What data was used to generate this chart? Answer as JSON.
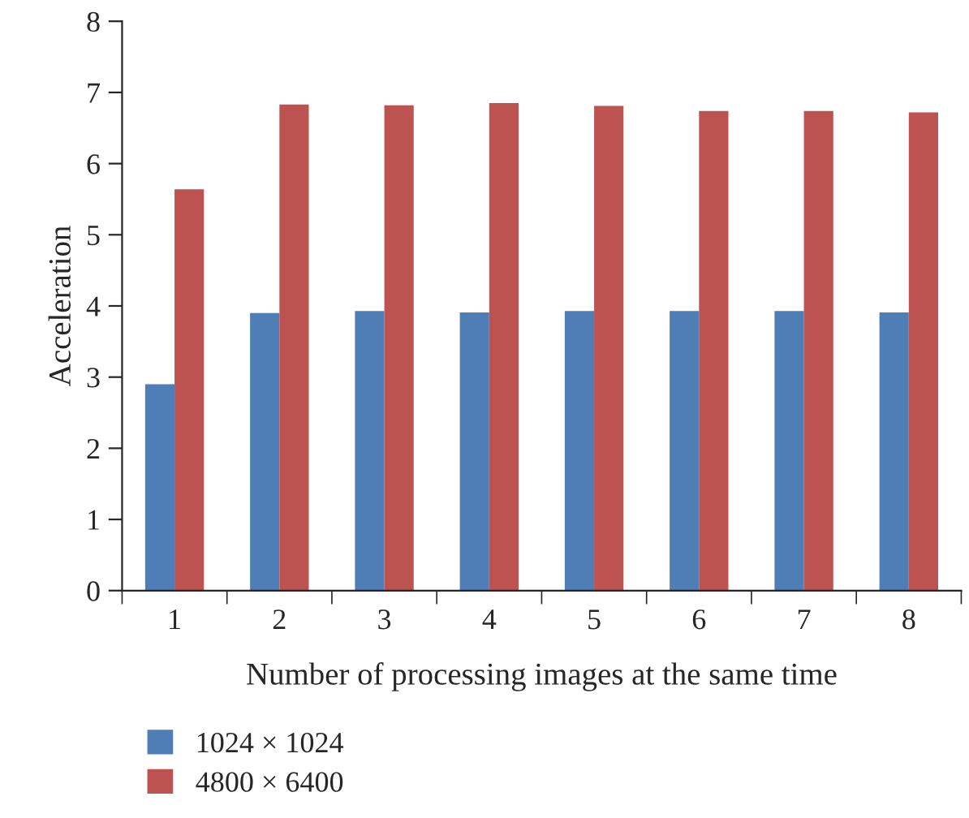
{
  "chart_data": {
    "type": "bar",
    "xlabel": "Number of processing images at the same time",
    "ylabel": "Acceleration",
    "categories": [
      "1",
      "2",
      "3",
      "4",
      "5",
      "6",
      "7",
      "8"
    ],
    "series": [
      {
        "name": "1024 × 1024",
        "color": "#4f7db5",
        "values": [
          2.9,
          3.9,
          3.93,
          3.91,
          3.93,
          3.93,
          3.93,
          3.91
        ]
      },
      {
        "name": "4800 × 6400",
        "color": "#bc5351",
        "values": [
          5.64,
          6.83,
          6.82,
          6.85,
          6.81,
          6.74,
          6.74,
          6.72
        ]
      }
    ],
    "ylim": [
      0,
      8
    ],
    "yticks": [
      0,
      1,
      2,
      3,
      4,
      5,
      6,
      7,
      8
    ],
    "grid": false,
    "legend": "bottom left"
  }
}
